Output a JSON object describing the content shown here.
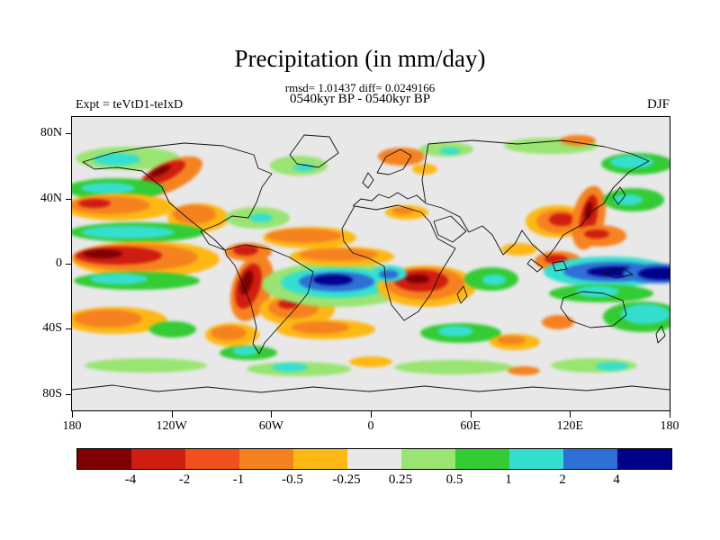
{
  "figure": {
    "title": "Precipitation (in mm/day)",
    "stats_line": "rmsd= 1.01437 diff= 0.0249166",
    "period_line": "0540kyr BP - 0540kyr BP",
    "experiment_label": "Expt = teVtD1-teIxD",
    "season_label": "DJF"
  },
  "chart_data": {
    "type": "heatmap",
    "title": "Precipitation (in mm/day)",
    "subtitle": "0540kyr BP - 0540kyr BP",
    "season": "DJF",
    "experiment": "teVtD1-teIxD",
    "rmsd": 1.01437,
    "diff": 0.0249166,
    "units": "mm/day",
    "projection": "global latitude-longitude map, 180W to 180E, 90S to 90N",
    "grid": "off",
    "legend_position": "horizontal colorbar at bottom",
    "lat_ticks": [
      {
        "label": "80N",
        "lat": 80
      },
      {
        "label": "40N",
        "lat": 40
      },
      {
        "label": "0",
        "lat": 0
      },
      {
        "label": "40S",
        "lat": -40
      },
      {
        "label": "80S",
        "lat": -80
      }
    ],
    "lon_ticks": [
      {
        "label": "180",
        "lon": -180
      },
      {
        "label": "120W",
        "lon": -120
      },
      {
        "label": "60W",
        "lon": -60
      },
      {
        "label": "0",
        "lon": 0
      },
      {
        "label": "60E",
        "lon": 60
      },
      {
        "label": "120E",
        "lon": 120
      },
      {
        "label": "180",
        "lon": 180
      }
    ],
    "colorbar": {
      "orientation": "horizontal-bottom",
      "levels": [
        -4,
        -2,
        -1,
        -0.5,
        -0.25,
        0.25,
        0.5,
        1,
        2,
        4
      ],
      "labels": [
        "-4",
        "-2",
        "-1",
        "-0.5",
        "-0.25",
        "0.25",
        "0.5",
        "1",
        "2",
        "4"
      ],
      "colors": [
        "#7f0000",
        "#cf1d10",
        "#ef501e",
        "#f5821f",
        "#fdb813",
        "#e8e8e8",
        "#99e472",
        "#33cc33",
        "#35dfd0",
        "#2e6fd6",
        "#00008b"
      ]
    },
    "background_fill": "#e8e8e8",
    "notable_anomalies": [
      {
        "region": "equatorial eastern Pacific (left edge of map)",
        "sign": "negative",
        "approx_value": "-2 to -4"
      },
      {
        "region": "bands flanking eastern Pacific dry band",
        "sign": "positive",
        "approx_value": "0.5 to 1"
      },
      {
        "region": "Peru / Andes west coast of South America",
        "sign": "negative",
        "approx_value": "-2 to -4"
      },
      {
        "region": "equatorial Atlantic",
        "sign": "positive",
        "approx_value": "2 to 4"
      },
      {
        "region": "central Africa",
        "sign": "negative",
        "approx_value": "-1 to -4"
      },
      {
        "region": "Maritime Continent / western equatorial Pacific",
        "sign": "positive",
        "approx_value": "2 to 4"
      },
      {
        "region": "northwest North America coast",
        "sign": "negative",
        "approx_value": "-1 to -2"
      },
      {
        "region": "East Asia / Japan",
        "sign": "negative",
        "approx_value": "-1 to -2"
      },
      {
        "region": "southern mid-latitudes",
        "sign": "mixed",
        "approx_value": "-0.5 to 1"
      }
    ]
  }
}
